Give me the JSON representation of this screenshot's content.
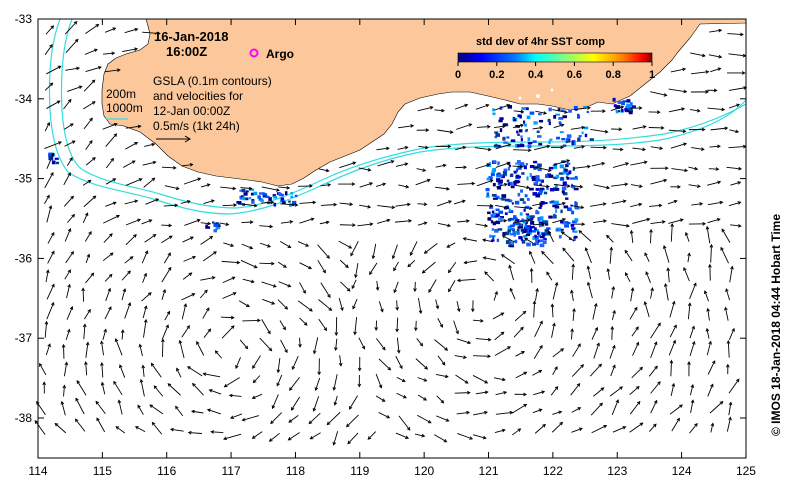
{
  "header": {
    "date": "16-Jan-2018",
    "time": "16:00Z",
    "argo_label": "Argo"
  },
  "legend": {
    "isobath_200": "200m",
    "isobath_1000": "1000m",
    "gsla_line1": "GSLA (0.1m contours)",
    "gsla_line2": "and velocities for",
    "gsla_line3": "12-Jan 00:00Z",
    "scale_label": "0.5m/s (1kt 24h)"
  },
  "colorbar": {
    "title": "std dev of 4hr SST comp",
    "ticks": [
      "0",
      "0.2",
      "0.4",
      "0.6",
      "0.8",
      "1"
    ],
    "colors": [
      "#00007f",
      "#0000ff",
      "#007fff",
      "#00ffff",
      "#7fff7f",
      "#ffff00",
      "#ff7f00",
      "#ff0000",
      "#7f0000"
    ]
  },
  "axes": {
    "x_ticks": [
      "114",
      "115",
      "116",
      "117",
      "118",
      "119",
      "120",
      "121",
      "122",
      "123",
      "124",
      "125"
    ],
    "y_ticks": [
      "-33",
      "-34",
      "-35",
      "-36",
      "-37",
      "-38"
    ]
  },
  "credit": "© IMOS 18-Jan-2018 04:44 Hobart Time",
  "colors": {
    "land": "#fcc89b",
    "isobath": "#33dddd",
    "arrow": "#000000",
    "argo_marker": "#ff00ff"
  }
}
